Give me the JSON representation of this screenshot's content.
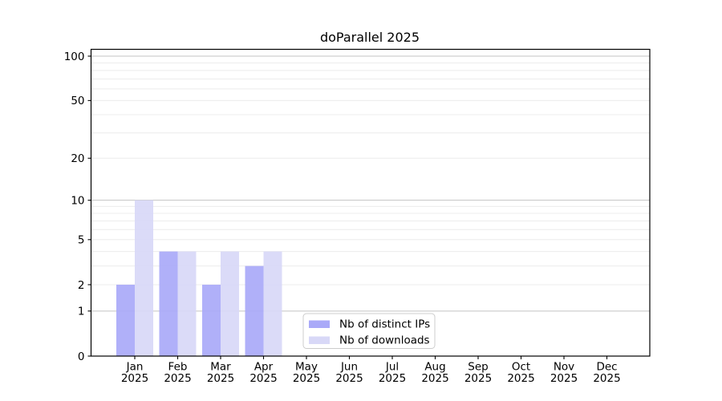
{
  "chart_data": {
    "type": "bar",
    "title": "doParallel 2025",
    "categories": [
      {
        "month": "Jan",
        "year": "2025"
      },
      {
        "month": "Feb",
        "year": "2025"
      },
      {
        "month": "Mar",
        "year": "2025"
      },
      {
        "month": "Apr",
        "year": "2025"
      },
      {
        "month": "May",
        "year": "2025"
      },
      {
        "month": "Jun",
        "year": "2025"
      },
      {
        "month": "Jul",
        "year": "2025"
      },
      {
        "month": "Aug",
        "year": "2025"
      },
      {
        "month": "Sep",
        "year": "2025"
      },
      {
        "month": "Oct",
        "year": "2025"
      },
      {
        "month": "Nov",
        "year": "2025"
      },
      {
        "month": "Dec",
        "year": "2025"
      }
    ],
    "series": [
      {
        "name": "Nb of distinct IPs",
        "color": "#a9a9f8",
        "values": [
          2,
          4,
          2,
          3,
          0,
          0,
          0,
          0,
          0,
          0,
          0,
          0
        ]
      },
      {
        "name": "Nb of downloads",
        "color": "#d8d8f7",
        "values": [
          10,
          4,
          4,
          4,
          0,
          0,
          0,
          0,
          0,
          0,
          0,
          0
        ]
      }
    ],
    "xlabel": "",
    "ylabel": "",
    "y_axis": {
      "scale": "log10(1+x)",
      "tick_labels": [
        0,
        1,
        2,
        5,
        10,
        20,
        50,
        100
      ],
      "ylim": [
        0,
        112
      ],
      "major_gridlines": [
        1,
        10,
        100
      ],
      "minor_gridlines": [
        2,
        3,
        4,
        5,
        6,
        7,
        8,
        9,
        20,
        30,
        40,
        50,
        60,
        70,
        80,
        90
      ]
    },
    "grid": true,
    "legend": {
      "position": "inside-bottom-center",
      "entries": [
        "Nb of distinct IPs",
        "Nb of downloads"
      ]
    }
  },
  "colors": {
    "background": "#ffffff",
    "spine": "#000000",
    "major_grid": "#c3c3c3",
    "minor_grid": "#ececec",
    "legend_border": "#cccccc",
    "legend_background": "#ffffff",
    "text": "#000000"
  }
}
